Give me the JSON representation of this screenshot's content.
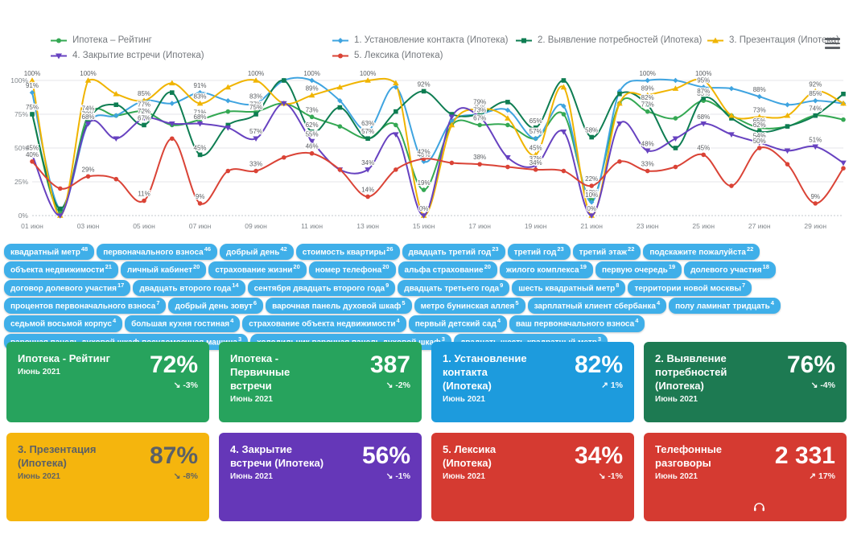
{
  "legend": [
    {
      "label": "Ипотека – Рейтинг",
      "color": "#34a853",
      "marker": "circle"
    },
    {
      "label": "1. Установление контакта (Ипотека)",
      "color": "#3fa4e0",
      "marker": "diamond"
    },
    {
      "label": "2. Выявление потребностей (Ипотека)",
      "color": "#0e7d52",
      "marker": "square"
    },
    {
      "label": "3. Презентация (Ипотека)",
      "color": "#f0b400",
      "marker": "triangle-up"
    },
    {
      "label": "4. Закрытие встречи (Ипотека)",
      "color": "#6742c0",
      "marker": "triangle-down"
    },
    {
      "label": "5. Лексика (Ипотека)",
      "color": "#da4336",
      "marker": "circle"
    }
  ],
  "chart_data": {
    "type": "line",
    "title": "",
    "xlabel": "",
    "ylabel": "",
    "ylim": [
      0,
      100
    ],
    "grid": true,
    "legend_position": "top",
    "y_ticks": [
      "0%",
      "25%",
      "50%",
      "75%",
      "100%"
    ],
    "categories": [
      "01 июн",
      "02 июн",
      "03 июн",
      "04 июн",
      "05 июн",
      "06 июн",
      "07 июн",
      "08 июн",
      "09 июн",
      "10 июн",
      "11 июн",
      "12 июн",
      "13 июн",
      "14 июн",
      "15 июн",
      "16 июн",
      "17 июн",
      "18 июн",
      "19 июн",
      "20 июн",
      "21 июн",
      "22 июн",
      "23 июн",
      "24 июн",
      "25 июн",
      "26 июн",
      "27 июн",
      "28 июн",
      "29 июн",
      "30 июн"
    ],
    "x_tick_labels": [
      "01 июн",
      "03 июн",
      "05 июн",
      "07 июн",
      "09 июн",
      "11 июн",
      "13 июн",
      "15 июн",
      "17 июн",
      "19 июн",
      "21 июн",
      "23 июн",
      "25 июн",
      "27 июн",
      "29 июн"
    ],
    "series": [
      {
        "name": "Ипотека – Рейтинг",
        "color": "#34a853",
        "marker": "circle",
        "values": [
          75,
          3,
          74,
          74,
          77,
          67,
          71,
          77,
          77,
          83,
          73,
          66,
          57,
          67,
          19,
          67,
          67,
          67,
          57,
          75,
          12,
          83,
          77,
          72,
          85,
          74,
          65,
          66,
          74,
          71
        ]
      },
      {
        "name": "1. Установление контакта (Ипотека)",
        "color": "#3fa4e0",
        "marker": "diamond",
        "values": [
          91,
          5,
          68,
          74,
          85,
          83,
          91,
          85,
          83,
          100,
          100,
          85,
          63,
          95,
          40,
          70,
          75,
          78,
          57,
          81,
          10,
          92,
          100,
          100,
          95,
          94,
          88,
          82,
          85,
          83
        ]
      },
      {
        "name": "2. Выявление потребностей (Ипотека)",
        "color": "#0e7d52",
        "marker": "square",
        "values": [
          75,
          5,
          70,
          82,
          67,
          91,
          45,
          67,
          75,
          100,
          62,
          80,
          57,
          77,
          92,
          75,
          75,
          84,
          65,
          100,
          58,
          90,
          82,
          50,
          87,
          72,
          62,
          66,
          74,
          90
        ]
      },
      {
        "name": "3. Презентация (Ипотека)",
        "color": "#f0b400",
        "marker": "triangle-up",
        "values": [
          100,
          0,
          100,
          90,
          85,
          98,
          83,
          95,
          100,
          83,
          89,
          95,
          100,
          98,
          0,
          67,
          79,
          72,
          45,
          95,
          0,
          83,
          89,
          94,
          100,
          74,
          73,
          74,
          92,
          83
        ]
      },
      {
        "name": "4. Закрытие встречи (Ипотека)",
        "color": "#6742c0",
        "marker": "triangle-down",
        "values": [
          45,
          0,
          68,
          57,
          72,
          68,
          68,
          65,
          57,
          83,
          55,
          34,
          34,
          60,
          0,
          73,
          73,
          43,
          37,
          62,
          0,
          68,
          48,
          57,
          68,
          60,
          54,
          48,
          51,
          39
        ]
      },
      {
        "name": "5. Лексика (Ипотека)",
        "color": "#da4336",
        "marker": "circle",
        "values": [
          40,
          20,
          29,
          27,
          11,
          57,
          9,
          33,
          33,
          43,
          46,
          34,
          14,
          34,
          42,
          39,
          38,
          36,
          34,
          33,
          22,
          40,
          33,
          36,
          45,
          22,
          50,
          38,
          9,
          35
        ]
      }
    ]
  },
  "tags": [
    {
      "text": "квадратный метр",
      "count": 48
    },
    {
      "text": "первоначального взноса",
      "count": 46
    },
    {
      "text": "добрый день",
      "count": 42
    },
    {
      "text": "стоимость квартиры",
      "count": 26
    },
    {
      "text": "двадцать третий год",
      "count": 23
    },
    {
      "text": "третий год",
      "count": 23
    },
    {
      "text": "третий этаж",
      "count": 22
    },
    {
      "text": "подскажите пожалуйста",
      "count": 22
    },
    {
      "text": "объекта недвижимости",
      "count": 21
    },
    {
      "text": "личный кабинет",
      "count": 20
    },
    {
      "text": "страхование жизни",
      "count": 20
    },
    {
      "text": "номер телефона",
      "count": 20
    },
    {
      "text": "альфа страхование",
      "count": 20
    },
    {
      "text": "жилого комплекса",
      "count": 19
    },
    {
      "text": "первую очередь",
      "count": 19
    },
    {
      "text": "долевого участия",
      "count": 18
    },
    {
      "text": "договор долевого участия",
      "count": 17
    },
    {
      "text": "двадцать второго года",
      "count": 14
    },
    {
      "text": "сентября двадцать второго года",
      "count": 9
    },
    {
      "text": "двадцать третьего года",
      "count": 9
    },
    {
      "text": "шесть квадратный метр",
      "count": 8
    },
    {
      "text": "территории новой москвы",
      "count": 7
    },
    {
      "text": "процентов первоначального взноса",
      "count": 7
    },
    {
      "text": "добрый день зовут",
      "count": 6
    },
    {
      "text": "варочная панель духовой шкаф",
      "count": 5
    },
    {
      "text": "метро бунинская аллея",
      "count": 5
    },
    {
      "text": "зарплатный клиент сбербанка",
      "count": 4
    },
    {
      "text": "полу ламинат тридцать",
      "count": 4
    },
    {
      "text": "седьмой восьмой корпус",
      "count": 4
    },
    {
      "text": "большая кухня гостиная",
      "count": 4
    },
    {
      "text": "страхование объекта недвижимости",
      "count": 4
    },
    {
      "text": "первый детский сад",
      "count": 4
    },
    {
      "text": "ваш первоначального взноса",
      "count": 4
    },
    {
      "text": "варочная панель духовой шкаф посудомоечная машина",
      "count": 3
    },
    {
      "text": "холодильник варочная панель духовой шкаф",
      "count": 3
    },
    {
      "text": "двадцать шесть квадратный метр",
      "count": 3
    }
  ],
  "cards": [
    {
      "title": "Ипотека - Рейтинг",
      "period": "Июнь 2021",
      "value": "72%",
      "arrow": "↘",
      "delta": "-3%",
      "bg": "#27a35d",
      "fg": "#ffffff"
    },
    {
      "title": "Ипотека - Первичные встречи",
      "period": "Июнь 2021",
      "value": "387",
      "arrow": "↘",
      "delta": "-2%",
      "bg": "#27a35d",
      "fg": "#ffffff"
    },
    {
      "title": "1. Установление контакта (Ипотека)",
      "period": "Июнь 2021",
      "value": "82%",
      "arrow": "↗",
      "delta": "1%",
      "bg": "#1d9bdd",
      "fg": "#ffffff"
    },
    {
      "title": "2. Выявление потребностей (Ипотека)",
      "period": "Июнь 2021",
      "value": "76%",
      "arrow": "↘",
      "delta": "-4%",
      "bg": "#1d7a52",
      "fg": "#ffffff"
    },
    {
      "title": "3. Презентация (Ипотека)",
      "period": "Июнь 2021",
      "value": "87%",
      "arrow": "↘",
      "delta": "-8%",
      "bg": "#f5b50d",
      "fg": "#5b6066"
    },
    {
      "title": "4. Закрытие встречи (Ипотека)",
      "period": "Июнь 2021",
      "value": "56%",
      "arrow": "↘",
      "delta": "-1%",
      "bg": "#6537b8",
      "fg": "#ffffff"
    },
    {
      "title": "5. Лексика (Ипотека)",
      "period": "Июнь 2021",
      "value": "34%",
      "arrow": "↘",
      "delta": "-1%",
      "bg": "#d53a31",
      "fg": "#ffffff"
    },
    {
      "title": "Телефонные разговоры",
      "period": "Июнь 2021",
      "value": "2 331",
      "arrow": "↗",
      "delta": "17%",
      "bg": "#d53a31",
      "fg": "#ffffff",
      "icon": "headphones"
    }
  ]
}
